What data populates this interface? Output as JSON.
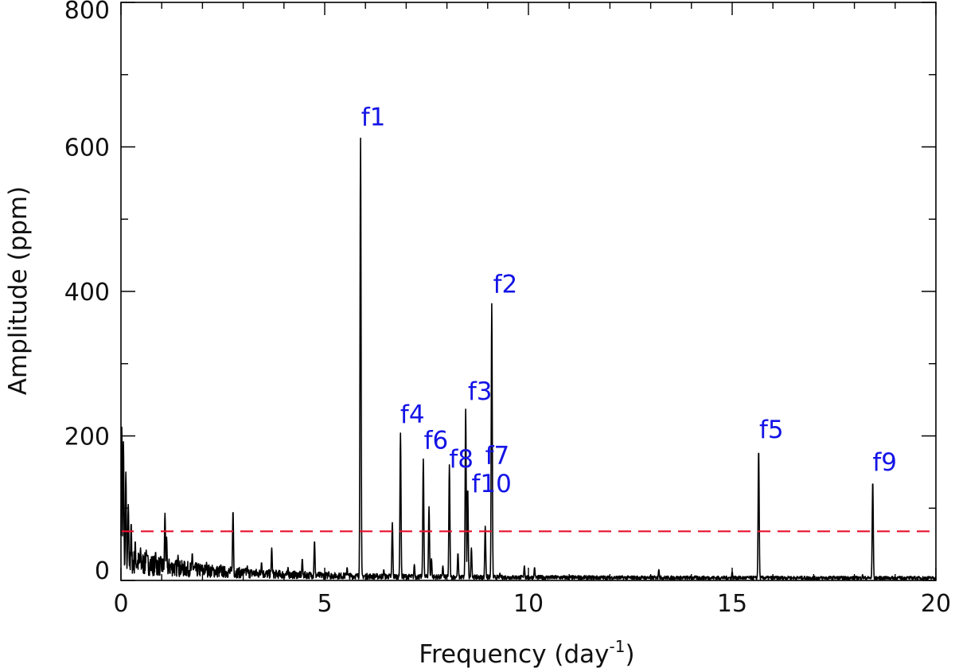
{
  "chart_data": {
    "type": "line",
    "title": "",
    "xlabel": "Frequency (day",
    "xlabel_sup": "-1",
    "xlabel_close": ")",
    "ylabel": "Amplitude (ppm)",
    "xlim": [
      0,
      20
    ],
    "ylim": [
      0,
      800
    ],
    "xticks": [
      0,
      5,
      10,
      15,
      20
    ],
    "xtick_labels": [
      "0",
      "5",
      "10",
      "15",
      "20"
    ],
    "yticks": [
      0,
      200,
      400,
      600,
      800
    ],
    "ytick_labels": [
      "0",
      "200",
      "400",
      "600",
      "800"
    ],
    "grid": false,
    "series": [
      {
        "color": "#000000",
        "peaks": [
          {
            "x": 0.02,
            "y": 212
          },
          {
            "x": 0.06,
            "y": 192
          },
          {
            "x": 0.12,
            "y": 150
          },
          {
            "x": 0.18,
            "y": 105
          },
          {
            "x": 0.25,
            "y": 80
          },
          {
            "x": 0.35,
            "y": 55
          },
          {
            "x": 0.48,
            "y": 45
          },
          {
            "x": 0.62,
            "y": 42
          },
          {
            "x": 0.85,
            "y": 40
          },
          {
            "x": 1.08,
            "y": 93
          },
          {
            "x": 1.12,
            "y": 60
          },
          {
            "x": 1.4,
            "y": 35
          },
          {
            "x": 1.75,
            "y": 38
          },
          {
            "x": 2.1,
            "y": 25
          },
          {
            "x": 2.45,
            "y": 22
          },
          {
            "x": 2.75,
            "y": 97
          },
          {
            "x": 3.1,
            "y": 20
          },
          {
            "x": 3.45,
            "y": 25
          },
          {
            "x": 3.7,
            "y": 45
          },
          {
            "x": 4.1,
            "y": 18
          },
          {
            "x": 4.45,
            "y": 30
          },
          {
            "x": 4.75,
            "y": 55
          },
          {
            "x": 5.1,
            "y": 12
          },
          {
            "x": 5.55,
            "y": 18
          },
          {
            "x": 5.88,
            "y": 612
          },
          {
            "x": 6.45,
            "y": 15
          },
          {
            "x": 6.66,
            "y": 80
          },
          {
            "x": 6.86,
            "y": 204
          },
          {
            "x": 7.2,
            "y": 22
          },
          {
            "x": 7.42,
            "y": 168
          },
          {
            "x": 7.56,
            "y": 102
          },
          {
            "x": 7.62,
            "y": 30
          },
          {
            "x": 7.9,
            "y": 20
          },
          {
            "x": 8.06,
            "y": 160
          },
          {
            "x": 8.27,
            "y": 38
          },
          {
            "x": 8.46,
            "y": 237
          },
          {
            "x": 8.51,
            "y": 128
          },
          {
            "x": 8.6,
            "y": 45
          },
          {
            "x": 8.94,
            "y": 75
          },
          {
            "x": 9.1,
            "y": 383
          },
          {
            "x": 9.3,
            "y": 10
          },
          {
            "x": 9.9,
            "y": 20
          },
          {
            "x": 10.15,
            "y": 18
          },
          {
            "x": 10.5,
            "y": 6
          },
          {
            "x": 11.4,
            "y": 5
          },
          {
            "x": 12.3,
            "y": 4
          },
          {
            "x": 13.2,
            "y": 15
          },
          {
            "x": 14.1,
            "y": 6
          },
          {
            "x": 15.0,
            "y": 12
          },
          {
            "x": 15.65,
            "y": 182
          },
          {
            "x": 16.4,
            "y": 5
          },
          {
            "x": 17.5,
            "y": 6
          },
          {
            "x": 18.2,
            "y": 8
          },
          {
            "x": 18.45,
            "y": 138
          },
          {
            "x": 19.3,
            "y": 5
          }
        ]
      }
    ],
    "threshold": {
      "y": 68,
      "color": "#e8112d",
      "style": "dashed"
    },
    "annotations": [
      {
        "text": "f1",
        "x": 5.88,
        "y": 612
      },
      {
        "text": "f2",
        "x": 9.1,
        "y": 383
      },
      {
        "text": "f3",
        "x": 8.46,
        "y": 237
      },
      {
        "text": "f4",
        "x": 6.86,
        "y": 204
      },
      {
        "text": "f5",
        "x": 15.65,
        "y": 182
      },
      {
        "text": "f6",
        "x": 7.42,
        "y": 168
      },
      {
        "text": "f7",
        "x": 9.1,
        "y": 168
      },
      {
        "text": "f8",
        "x": 8.06,
        "y": 160
      },
      {
        "text": "f9",
        "x": 18.45,
        "y": 138
      },
      {
        "text": "f10",
        "x": 8.51,
        "y": 128
      }
    ],
    "annotation_color": "#1414e6"
  }
}
